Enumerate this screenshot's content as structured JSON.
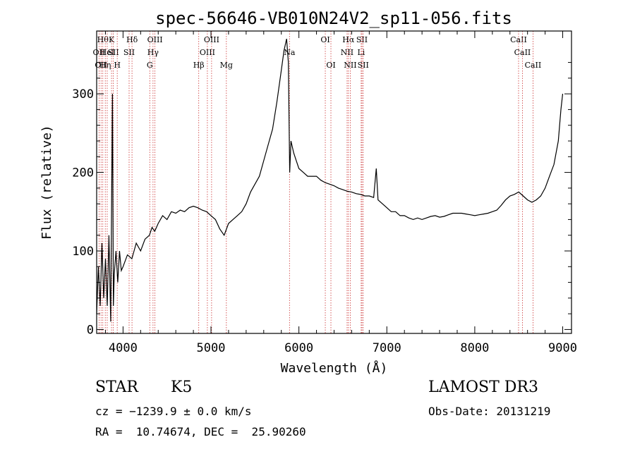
{
  "chart_data": {
    "type": "line",
    "title": "spec-56646-VB010N24V2_sp11-056.fits",
    "xlabel": "Wavelength (Å)",
    "ylabel": "Flux (relative)",
    "xlim": [
      3700,
      9100
    ],
    "ylim": [
      -5,
      380
    ],
    "xticks": [
      4000,
      5000,
      6000,
      7000,
      8000,
      9000
    ],
    "yticks": [
      0,
      100,
      200,
      300
    ],
    "grid": false,
    "line_color": "#000000",
    "marker_line_color": "#cc3333",
    "series": [
      {
        "x": [
          3700,
          3720,
          3740,
          3760,
          3780,
          3800,
          3820,
          3840,
          3860,
          3880,
          3890,
          3900,
          3920,
          3940,
          3960,
          3980,
          4000,
          4050,
          4100,
          4150,
          4200,
          4250,
          4300,
          4330,
          4360,
          4400,
          4450,
          4500,
          4550,
          4600,
          4650,
          4700,
          4750,
          4800,
          4850,
          4900,
          4950,
          5000,
          5050,
          5100,
          5150,
          5200,
          5250,
          5300,
          5350,
          5400,
          5450,
          5500,
          5550,
          5600,
          5650,
          5700,
          5750,
          5800,
          5830,
          5860,
          5880,
          5895,
          5910,
          5940,
          5970,
          6000,
          6050,
          6100,
          6150,
          6200,
          6250,
          6300,
          6350,
          6400,
          6450,
          6500,
          6550,
          6600,
          6650,
          6700,
          6750,
          6800,
          6850,
          6880,
          6900,
          6950,
          7000,
          7050,
          7100,
          7150,
          7200,
          7250,
          7300,
          7350,
          7400,
          7450,
          7500,
          7550,
          7600,
          7650,
          7700,
          7750,
          7800,
          7850,
          7900,
          7950,
          8000,
          8050,
          8100,
          8150,
          8200,
          8250,
          8300,
          8350,
          8400,
          8450,
          8500,
          8550,
          8600,
          8650,
          8700,
          8750,
          8800,
          8850,
          8900,
          8950,
          8980,
          9000
        ],
        "y": [
          20,
          80,
          30,
          110,
          40,
          90,
          30,
          120,
          10,
          300,
          30,
          70,
          100,
          60,
          100,
          75,
          80,
          95,
          90,
          110,
          100,
          115,
          120,
          130,
          125,
          135,
          145,
          140,
          150,
          148,
          152,
          150,
          155,
          157,
          155,
          152,
          150,
          145,
          140,
          128,
          120,
          135,
          140,
          145,
          150,
          160,
          175,
          185,
          195,
          215,
          235,
          255,
          290,
          330,
          355,
          370,
          340,
          200,
          240,
          225,
          215,
          205,
          200,
          195,
          195,
          195,
          190,
          187,
          185,
          183,
          180,
          178,
          176,
          175,
          173,
          172,
          170,
          170,
          168,
          205,
          165,
          160,
          155,
          150,
          150,
          145,
          145,
          142,
          140,
          142,
          140,
          142,
          144,
          145,
          143,
          144,
          146,
          148,
          148,
          148,
          147,
          146,
          145,
          146,
          147,
          148,
          150,
          152,
          158,
          165,
          170,
          172,
          175,
          170,
          165,
          162,
          165,
          170,
          180,
          195,
          210,
          240,
          280,
          300
        ]
      }
    ],
    "lines": [
      {
        "x": 3727,
        "label": "OII",
        "row": 1
      },
      {
        "x": 3750,
        "label": "OII",
        "row": 2
      },
      {
        "x": 3770,
        "label": "Hθ",
        "row": 0
      },
      {
        "x": 3798,
        "label": "Hη",
        "row": 2
      },
      {
        "x": 3820,
        "label": "HeI",
        "row": 1
      },
      {
        "x": 3869,
        "label": "K",
        "row": 0
      },
      {
        "x": 3889,
        "label": "SII",
        "row": 1
      },
      {
        "x": 3934,
        "label": "H",
        "row": 2
      },
      {
        "x": 4069,
        "label": "SII",
        "row": 1
      },
      {
        "x": 4102,
        "label": "Hδ",
        "row": 0
      },
      {
        "x": 4304,
        "label": "G",
        "row": 2
      },
      {
        "x": 4341,
        "label": "Hγ",
        "row": 1
      },
      {
        "x": 4363,
        "label": "OIII",
        "row": 0
      },
      {
        "x": 4861,
        "label": "Hβ",
        "row": 2
      },
      {
        "x": 4959,
        "label": "OIII",
        "row": 1
      },
      {
        "x": 5007,
        "label": "OIII",
        "row": 0
      },
      {
        "x": 5175,
        "label": "Mg",
        "row": 2
      },
      {
        "x": 5893,
        "label": "Na",
        "row": 1
      },
      {
        "x": 6300,
        "label": "OI",
        "row": 0
      },
      {
        "x": 6364,
        "label": "OI",
        "row": 2
      },
      {
        "x": 6548,
        "label": "NII",
        "row": 1
      },
      {
        "x": 6563,
        "label": "Hα",
        "row": 0
      },
      {
        "x": 6584,
        "label": "NII",
        "row": 2
      },
      {
        "x": 6708,
        "label": "Li",
        "row": 1
      },
      {
        "x": 6717,
        "label": "SII",
        "row": 0
      },
      {
        "x": 6731,
        "label": "SII",
        "row": 2
      },
      {
        "x": 8498,
        "label": "CaII",
        "row": 0
      },
      {
        "x": 8542,
        "label": "CaII",
        "row": 1
      },
      {
        "x": 8662,
        "label": "CaII",
        "row": 2
      }
    ]
  },
  "info": {
    "class": "STAR",
    "subclass": "K5",
    "survey": "LAMOST DR3",
    "cz": "cz = −1239.9 ± 0.0 km/s",
    "obs_date": "Obs-Date: 20131219",
    "radec": "RA =  10.74674, DEC =  25.90260"
  }
}
